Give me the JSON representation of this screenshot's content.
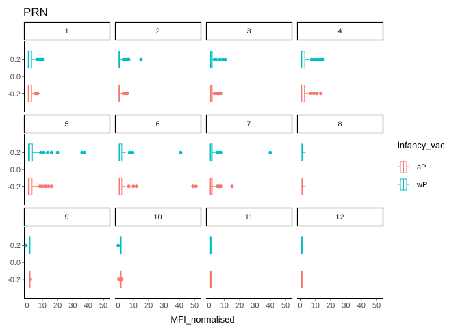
{
  "chart_data": {
    "type": "boxplot",
    "title": "PRN",
    "xlabel": "MFI_normalised",
    "ylabel": "",
    "xlim": [
      -2,
      54
    ],
    "ylim": [
      -0.42,
      0.42
    ],
    "xticks": [
      0,
      10,
      20,
      30,
      40,
      50
    ],
    "yticks": [
      0.2,
      0.0,
      -0.2
    ],
    "ytick_labels": [
      "0.2",
      "0.0",
      "-0.2"
    ],
    "grid": false,
    "legend": {
      "title": "infancy_vac",
      "position": "right",
      "entries": [
        {
          "label": "aP",
          "color": "#F8766D"
        },
        {
          "label": "wP",
          "color": "#00BFC4"
        }
      ]
    },
    "series": [
      {
        "name": "aP",
        "color": "#F8766D",
        "y": -0.2
      },
      {
        "name": "wP",
        "color": "#00BFC4",
        "y": 0.2
      }
    ],
    "panels": [
      {
        "label": "1",
        "aP": {
          "min": 0.8,
          "q1": 0.8,
          "median": 1.2,
          "q3": 3.0,
          "max": 5.2,
          "outliers": [
            5.5,
            6.0,
            6.5,
            7.0
          ]
        },
        "wP": {
          "min": 0.8,
          "q1": 0.8,
          "median": 1.2,
          "q3": 3.0,
          "max": 5.2,
          "outliers": [
            6.5,
            7.5,
            8.5,
            9.5,
            10.5
          ]
        }
      },
      {
        "label": "2",
        "aP": {
          "min": 0.5,
          "q1": 0.6,
          "median": 0.8,
          "q3": 1.3,
          "max": 2.5,
          "outliers": [
            3.5,
            4.5,
            5.5,
            6.0
          ]
        },
        "wP": {
          "min": 0.5,
          "q1": 0.6,
          "median": 0.8,
          "q3": 1.3,
          "max": 2.8,
          "outliers": [
            3.5,
            4.5,
            5.5,
            6.5,
            7.0,
            15.0
          ]
        }
      },
      {
        "label": "3",
        "aP": {
          "min": 0.8,
          "q1": 0.9,
          "median": 1.1,
          "q3": 2.0,
          "max": 3.0,
          "outliers": [
            3.5,
            4.5,
            5.5,
            6.5,
            8.0
          ]
        },
        "wP": {
          "min": 0.8,
          "q1": 0.9,
          "median": 1.1,
          "q3": 2.0,
          "max": 3.0,
          "outliers": [
            3.5,
            4.5,
            7.0,
            9.0,
            10.5
          ]
        }
      },
      {
        "label": "4",
        "aP": {
          "min": 0.5,
          "q1": 0.6,
          "median": 0.9,
          "q3": 2.8,
          "max": 6.0,
          "outliers": [
            7.0,
            9.0,
            11.0,
            13.5
          ]
        },
        "wP": {
          "min": 0.5,
          "q1": 0.6,
          "median": 0.9,
          "q3": 3.0,
          "max": 6.0,
          "outliers": [
            7.5,
            9.0,
            10.5,
            12.0,
            13.5,
            15.0
          ]
        }
      },
      {
        "label": "5",
        "aP": {
          "min": 0.8,
          "q1": 0.9,
          "median": 1.3,
          "q3": 3.3,
          "max": 7.0,
          "outliers": [
            8.5,
            10.0,
            12.0,
            14.0,
            16.0
          ]
        },
        "wP": {
          "min": 0.8,
          "q1": 0.9,
          "median": 1.5,
          "q3": 3.5,
          "max": 8.0,
          "outliers": [
            9.0,
            11.0,
            13.5,
            16.0,
            20.0,
            36.0,
            37.5
          ]
        }
      },
      {
        "label": "6",
        "aP": {
          "min": 0.5,
          "q1": 0.7,
          "median": 1.0,
          "q3": 2.4,
          "max": 5.0,
          "outliers": [
            7.0,
            10.0,
            12.0,
            49.0,
            51.0
          ]
        },
        "wP": {
          "min": 0.6,
          "q1": 0.7,
          "median": 1.0,
          "q3": 2.4,
          "max": 5.0,
          "outliers": [
            7.5,
            9.5,
            41.0
          ]
        }
      },
      {
        "label": "7",
        "aP": {
          "min": 0.5,
          "q1": 0.7,
          "median": 1.0,
          "q3": 2.0,
          "max": 4.5,
          "outliers": [
            5.5,
            6.0,
            6.5,
            8.0,
            15.0
          ]
        },
        "wP": {
          "min": 0.5,
          "q1": 0.7,
          "median": 1.0,
          "q3": 2.0,
          "max": 4.5,
          "outliers": [
            5.5,
            6.5,
            8.0,
            40.0
          ]
        }
      },
      {
        "label": "8",
        "aP": {
          "min": 0.8,
          "q1": 1.1,
          "median": 1.3,
          "q3": 1.6,
          "max": 3.5,
          "outliers": []
        },
        "wP": {
          "min": 0.8,
          "q1": 1.1,
          "median": 1.3,
          "q3": 1.6,
          "max": 3.5,
          "outliers": []
        }
      },
      {
        "label": "9",
        "aP": {
          "min": 1.5,
          "q1": 1.6,
          "median": 1.7,
          "q3": 1.8,
          "max": 1.9,
          "outliers": [
            2.2
          ]
        },
        "wP": {
          "min": 1.5,
          "q1": 1.6,
          "median": 1.7,
          "q3": 1.8,
          "max": 1.9,
          "outliers": [
            -0.7
          ]
        }
      },
      {
        "label": "10",
        "aP": {
          "min": 1.2,
          "q1": 1.6,
          "median": 1.8,
          "q3": 2.0,
          "max": 2.3,
          "outliers": [
            0.5,
            1.2,
            2.5
          ]
        },
        "wP": {
          "min": 1.6,
          "q1": 1.7,
          "median": 1.8,
          "q3": 1.9,
          "max": 2.0,
          "outliers": [
            0.1
          ]
        }
      },
      {
        "label": "11",
        "aP": {
          "min": 0.9,
          "q1": 0.95,
          "median": 1.0,
          "q3": 1.05,
          "max": 1.1,
          "outliers": []
        },
        "wP": {
          "min": 0.9,
          "q1": 0.95,
          "median": 1.0,
          "q3": 1.05,
          "max": 1.1,
          "outliers": []
        }
      },
      {
        "label": "12",
        "aP": {
          "min": 0.9,
          "q1": 0.95,
          "median": 1.0,
          "q3": 1.05,
          "max": 1.1,
          "outliers": []
        },
        "wP": {
          "min": 0.9,
          "q1": 0.95,
          "median": 1.0,
          "q3": 1.05,
          "max": 1.1,
          "outliers": []
        }
      }
    ]
  }
}
